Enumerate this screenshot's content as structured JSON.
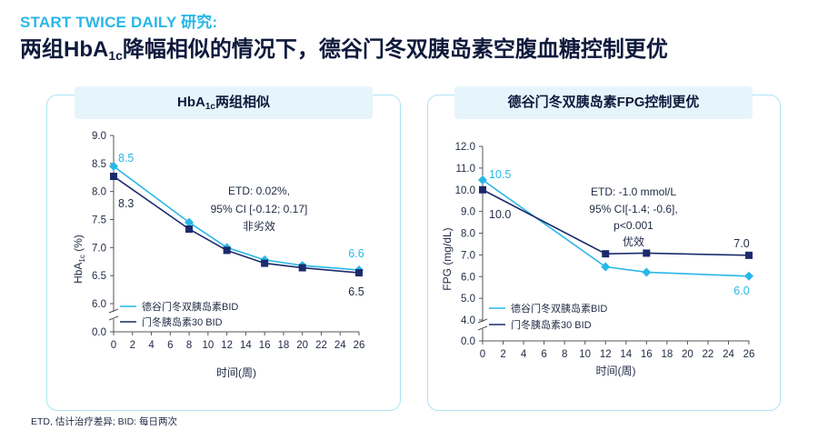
{
  "eyebrow": "START TWICE DAILY 研究:",
  "headline": {
    "pre": "两组HbA",
    "sub": "1c",
    "post": "降幅相似的情况下，德谷门冬双胰岛素空腹血糖控制更优"
  },
  "footnote": "ETD, 估计治疗差异; BID: 每日两次",
  "colors": {
    "light_blue": "#29b7e8",
    "navy": "#1a2a6c",
    "accent": "#29b7e8"
  },
  "chart_data": [
    {
      "type": "line",
      "title": {
        "pre": "HbA",
        "sub": "1c",
        "post": "两组相似"
      },
      "xlabel": "时间(周)",
      "ylabel": {
        "pre": "HbA",
        "sub": "1c",
        "post": " (%)"
      },
      "x": [
        0,
        8,
        12,
        16,
        20,
        26
      ],
      "xticks": [
        "0",
        "2",
        "4",
        "6",
        "8",
        "10",
        "12",
        "14",
        "16",
        "18",
        "20",
        "22",
        "24",
        "26"
      ],
      "xtick_values": [
        0,
        2,
        4,
        6,
        8,
        10,
        12,
        14,
        16,
        18,
        20,
        22,
        24,
        26
      ],
      "yticks": [
        "0.0",
        "6.0",
        "6.5",
        "7.0",
        "7.5",
        "8.0",
        "8.5",
        "9.0"
      ],
      "ytick_values": [
        0,
        6.0,
        6.5,
        7.0,
        7.5,
        8.0,
        8.5,
        9.0
      ],
      "axis_break": true,
      "series": [
        {
          "name": "德谷门冬双胰岛素BID",
          "marker": "diamond",
          "color": "#29b7e8",
          "values": [
            8.45,
            7.45,
            7.0,
            6.78,
            6.68,
            6.6
          ]
        },
        {
          "name": "门冬胰岛素30 BID",
          "marker": "square",
          "color": "#1a2a6c",
          "values": [
            8.27,
            7.33,
            6.95,
            6.72,
            6.64,
            6.55
          ]
        }
      ],
      "data_labels": {
        "s0_start": "8.5",
        "s1_start": "8.3",
        "s0_end": "6.6",
        "s1_end": "6.5"
      },
      "annotation": [
        "ETD: 0.02%,",
        "95% CI [-0.12; 0.17]",
        "非劣效"
      ]
    },
    {
      "type": "line",
      "title": "德谷门冬双胰岛素FPG控制更优",
      "xlabel": "时间(周)",
      "ylabel": "FPG (mg/dL)",
      "x": [
        0,
        12,
        16,
        26
      ],
      "xticks": [
        "0",
        "2",
        "4",
        "6",
        "8",
        "10",
        "12",
        "14",
        "16",
        "18",
        "20",
        "22",
        "24",
        "26"
      ],
      "xtick_values": [
        0,
        2,
        4,
        6,
        8,
        10,
        12,
        14,
        16,
        18,
        20,
        22,
        24,
        26
      ],
      "yticks": [
        "0.0",
        "4.0",
        "5.0",
        "6.0",
        "7.0",
        "8.0",
        "9.0",
        "10.0",
        "11.0",
        "12.0"
      ],
      "ytick_values": [
        0,
        4.0,
        5.0,
        6.0,
        7.0,
        8.0,
        9.0,
        10.0,
        11.0,
        12.0
      ],
      "axis_break": true,
      "series": [
        {
          "name": "德谷门冬双胰岛素BID",
          "marker": "diamond",
          "color": "#29b7e8",
          "values": [
            10.45,
            6.45,
            6.2,
            6.02
          ]
        },
        {
          "name": "门冬胰岛素30 BID",
          "marker": "square",
          "color": "#1a2a6c",
          "values": [
            10.0,
            7.05,
            7.08,
            6.98
          ]
        }
      ],
      "data_labels": {
        "s0_start": "10.5",
        "s1_start": "10.0",
        "s0_end": "6.0",
        "s1_end": "7.0"
      },
      "annotation": [
        "ETD: -1.0 mmol/L",
        "95% CI[-1.4; -0.6],",
        "p<0.001",
        "优效"
      ]
    }
  ]
}
